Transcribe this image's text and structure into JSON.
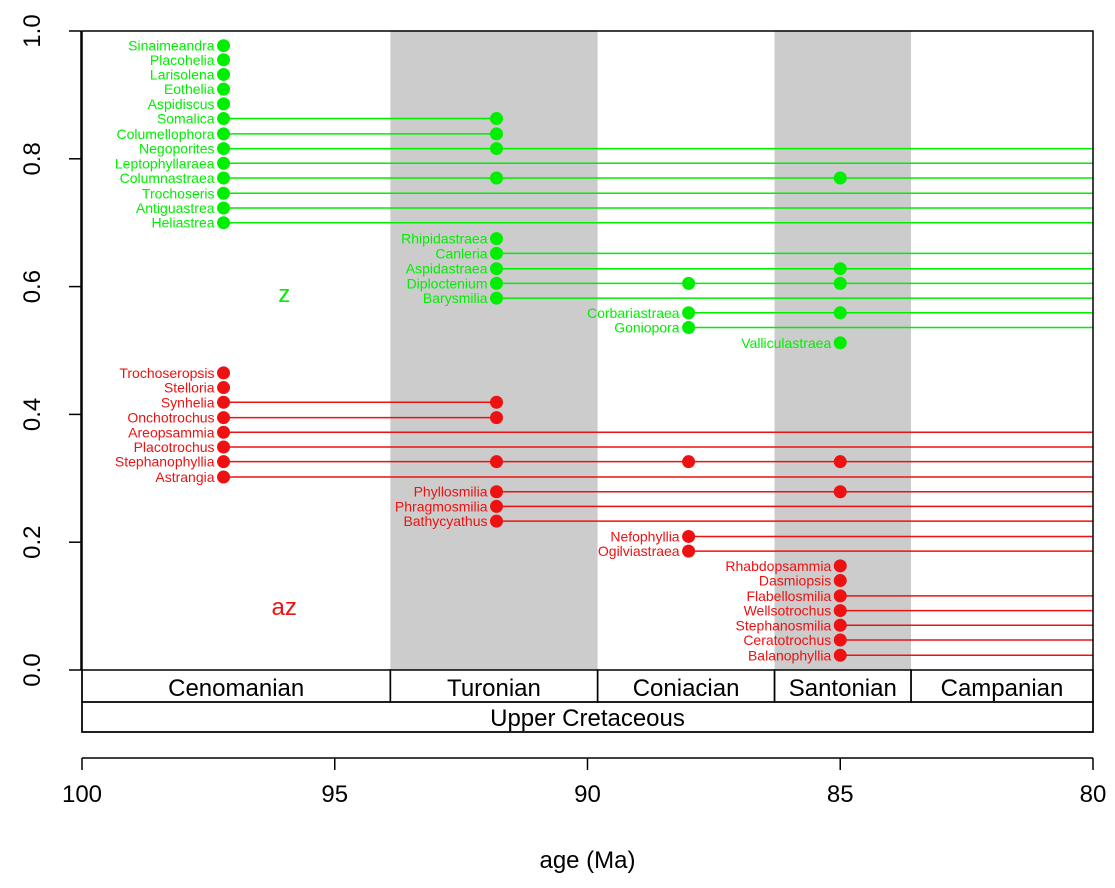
{
  "chart_data": {
    "type": "scatter",
    "xlabel": "age (Ma)",
    "xlim": [
      100,
      80
    ],
    "ylim": [
      0,
      1
    ],
    "x_ticks": [
      100,
      95,
      90,
      85,
      80
    ],
    "y_ticks": [
      0.0,
      0.2,
      0.4,
      0.6,
      0.8,
      1.0
    ],
    "y_tick_labels": [
      "0.0",
      "0.2",
      "0.4",
      "0.6",
      "0.8",
      "1.0"
    ],
    "colors": {
      "z": "#00ee00",
      "az": "#ee1111",
      "shade": "#cccccc"
    },
    "stages": [
      {
        "name": "Cenomanian",
        "start": 100.0,
        "end": 93.9,
        "shaded": false
      },
      {
        "name": "Turonian",
        "start": 93.9,
        "end": 89.8,
        "shaded": true
      },
      {
        "name": "Coniacian",
        "start": 89.8,
        "end": 86.3,
        "shaded": false
      },
      {
        "name": "Santonian",
        "start": 86.3,
        "end": 83.6,
        "shaded": true
      },
      {
        "name": "Campanian",
        "start": 83.6,
        "end": 80.0,
        "shaded": false
      }
    ],
    "epochs": [
      {
        "name": "Upper Cretaceous",
        "start": 100.0,
        "end": 80.0
      }
    ],
    "group_labels": [
      {
        "text": "z",
        "group": "z",
        "x": 96,
        "y": 0.59
      },
      {
        "text": "az",
        "group": "az",
        "x": 96,
        "y": 0.1
      }
    ],
    "series": [
      {
        "name": "Sinaimeandra",
        "group": "z",
        "y": 0.977,
        "points": [
          97.2
        ],
        "line_start": null
      },
      {
        "name": "Placohelia",
        "group": "z",
        "y": 0.955,
        "points": [
          97.2
        ],
        "line_start": null
      },
      {
        "name": "Larisolena",
        "group": "z",
        "y": 0.932,
        "points": [
          97.2
        ],
        "line_start": null
      },
      {
        "name": "Eothelia",
        "group": "z",
        "y": 0.909,
        "points": [
          97.2
        ],
        "line_start": null
      },
      {
        "name": "Aspidiscus",
        "group": "z",
        "y": 0.886,
        "points": [
          97.2
        ],
        "line_start": null
      },
      {
        "name": "Somalica",
        "group": "z",
        "y": 0.863,
        "points": [
          97.2,
          91.8
        ],
        "line_start": 97.2,
        "line_end": 91.8
      },
      {
        "name": "Columellophora",
        "group": "z",
        "y": 0.839,
        "points": [
          97.2,
          91.8
        ],
        "line_start": 97.2,
        "line_end": 91.8
      },
      {
        "name": "Negoporites",
        "group": "z",
        "y": 0.816,
        "points": [
          97.2,
          91.8
        ],
        "line_start": 97.2,
        "line_end": 80
      },
      {
        "name": "Leptophyllaraea",
        "group": "z",
        "y": 0.793,
        "points": [
          97.2
        ],
        "line_start": 97.2,
        "line_end": 80
      },
      {
        "name": "Columnastraea",
        "group": "z",
        "y": 0.77,
        "points": [
          97.2,
          91.8,
          85.0
        ],
        "line_start": 97.2,
        "line_end": 80
      },
      {
        "name": "Trochoseris",
        "group": "z",
        "y": 0.746,
        "points": [
          97.2
        ],
        "line_start": 97.2,
        "line_end": 80
      },
      {
        "name": "Antiguastrea",
        "group": "z",
        "y": 0.723,
        "points": [
          97.2
        ],
        "line_start": 97.2,
        "line_end": 80
      },
      {
        "name": "Heliastrea",
        "group": "z",
        "y": 0.7,
        "points": [
          97.2
        ],
        "line_start": 97.2,
        "line_end": 80
      },
      {
        "name": "Rhipidastraea",
        "group": "z",
        "y": 0.675,
        "points": [
          91.8
        ],
        "line_start": null
      },
      {
        "name": "Canleria",
        "group": "z",
        "y": 0.652,
        "points": [
          91.8
        ],
        "line_start": 91.8,
        "line_end": 80
      },
      {
        "name": "Aspidastraea",
        "group": "z",
        "y": 0.628,
        "points": [
          91.8,
          85.0
        ],
        "line_start": 91.8,
        "line_end": 80
      },
      {
        "name": "Diploctenium",
        "group": "z",
        "y": 0.605,
        "points": [
          91.8,
          88.0,
          85.0
        ],
        "line_start": 91.8,
        "line_end": 80
      },
      {
        "name": "Barysmilia",
        "group": "z",
        "y": 0.582,
        "points": [
          91.8
        ],
        "line_start": 91.8,
        "line_end": 80
      },
      {
        "name": "Corbariastraea",
        "group": "z",
        "y": 0.559,
        "points": [
          88.0,
          85.0
        ],
        "line_start": 88.0,
        "line_end": 80
      },
      {
        "name": "Goniopora",
        "group": "z",
        "y": 0.536,
        "points": [
          88.0
        ],
        "line_start": 88.0,
        "line_end": 80
      },
      {
        "name": "Valliculastraea",
        "group": "z",
        "y": 0.512,
        "points": [
          85.0
        ],
        "line_start": null
      },
      {
        "name": "Trochoseropsis",
        "group": "az",
        "y": 0.465,
        "points": [
          97.2
        ],
        "line_start": null
      },
      {
        "name": "Stelloria",
        "group": "az",
        "y": 0.442,
        "points": [
          97.2
        ],
        "line_start": null
      },
      {
        "name": "Synhelia",
        "group": "az",
        "y": 0.419,
        "points": [
          97.2,
          91.8
        ],
        "line_start": 97.2,
        "line_end": 91.8
      },
      {
        "name": "Onchotrochus",
        "group": "az",
        "y": 0.395,
        "points": [
          97.2,
          91.8
        ],
        "line_start": 97.2,
        "line_end": 91.8
      },
      {
        "name": "Areopsammia",
        "group": "az",
        "y": 0.372,
        "points": [
          97.2
        ],
        "line_start": 97.2,
        "line_end": 80
      },
      {
        "name": "Placotrochus",
        "group": "az",
        "y": 0.349,
        "points": [
          97.2
        ],
        "line_start": 97.2,
        "line_end": 80
      },
      {
        "name": "Stephanophyllia",
        "group": "az",
        "y": 0.326,
        "points": [
          97.2,
          91.8,
          88.0,
          85.0
        ],
        "line_start": 97.2,
        "line_end": 80
      },
      {
        "name": "Astrangia",
        "group": "az",
        "y": 0.302,
        "points": [
          97.2
        ],
        "line_start": 97.2,
        "line_end": 80
      },
      {
        "name": "Phyllosmilia",
        "group": "az",
        "y": 0.279,
        "points": [
          91.8,
          85.0
        ],
        "line_start": 91.8,
        "line_end": 80
      },
      {
        "name": "Phragmosmilia",
        "group": "az",
        "y": 0.256,
        "points": [
          91.8
        ],
        "line_start": 91.8,
        "line_end": 80
      },
      {
        "name": "Bathycyathus",
        "group": "az",
        "y": 0.233,
        "points": [
          91.8
        ],
        "line_start": 91.8,
        "line_end": 80
      },
      {
        "name": "Nefophyllia",
        "group": "az",
        "y": 0.209,
        "points": [
          88.0
        ],
        "line_start": 88.0,
        "line_end": 80
      },
      {
        "name": "Ogilviastraea",
        "group": "az",
        "y": 0.186,
        "points": [
          88.0
        ],
        "line_start": 88.0,
        "line_end": 80
      },
      {
        "name": "Rhabdopsammia",
        "group": "az",
        "y": 0.163,
        "points": [
          85.0
        ],
        "line_start": null
      },
      {
        "name": "Dasmiopsis",
        "group": "az",
        "y": 0.14,
        "points": [
          85.0
        ],
        "line_start": null
      },
      {
        "name": "Flabellosmilia",
        "group": "az",
        "y": 0.116,
        "points": [
          85.0
        ],
        "line_start": 85.0,
        "line_end": 80
      },
      {
        "name": "Wellsotrochus",
        "group": "az",
        "y": 0.093,
        "points": [
          85.0
        ],
        "line_start": 85.0,
        "line_end": 80
      },
      {
        "name": "Stephanosmilia",
        "group": "az",
        "y": 0.07,
        "points": [
          85.0
        ],
        "line_start": 85.0,
        "line_end": 80
      },
      {
        "name": "Ceratotrochus",
        "group": "az",
        "y": 0.047,
        "points": [
          85.0
        ],
        "line_start": 85.0,
        "line_end": 80
      },
      {
        "name": "Balanophyllia",
        "group": "az",
        "y": 0.023,
        "points": [
          85.0
        ],
        "line_start": 85.0,
        "line_end": 80
      }
    ]
  }
}
